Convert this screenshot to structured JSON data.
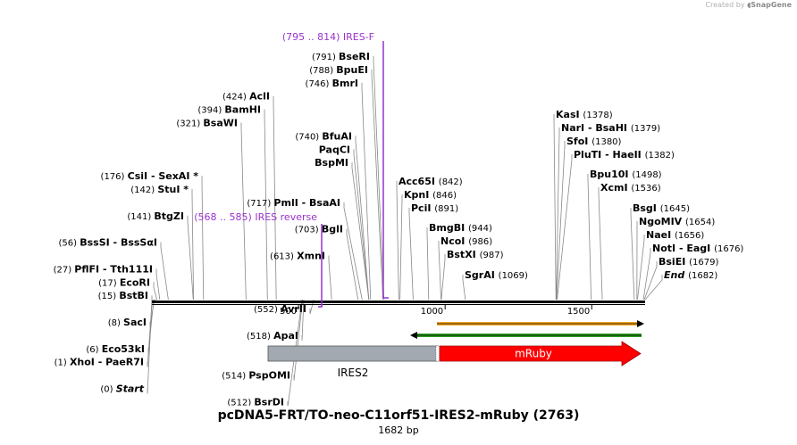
{
  "credit": {
    "prefix": "Created by",
    "brand": "SnapGene"
  },
  "title": "pcDNA5-FRT/TO-neo-C11orf51-IRES2-mRuby (2763)",
  "subtitle": "1682 bp",
  "colors": {
    "primer": "#9933cc",
    "ires": "#a2a9b1",
    "mruby": "#ff0000",
    "forward_arrow": "#f5a623",
    "reverse_arrow": "#2e9e1f"
  },
  "ruler": {
    "length": 1682,
    "ticks": [
      500,
      1000,
      1500
    ]
  },
  "primers": [
    {
      "label": "(795 .. 814)  IRES-F",
      "start": 795,
      "end": 814,
      "direction": "forward"
    },
    {
      "label": "(568 .. 585)  IRES reverse",
      "start": 568,
      "end": 585,
      "direction": "reverse"
    }
  ],
  "features": [
    {
      "name": "IRES2",
      "start": 400,
      "end": 985,
      "color": "#a2a9b1"
    },
    {
      "name": "mRuby",
      "start": 985,
      "end": 1680,
      "color": "#ff0000"
    }
  ],
  "orfs": [
    {
      "start": 985,
      "end": 1680,
      "direction": "forward",
      "color": "#f5a623"
    },
    {
      "start": 890,
      "end": 1680,
      "direction": "reverse",
      "color": "#2e9e1f"
    }
  ],
  "sites_left": [
    {
      "pos": "(791)",
      "name": "BseRI",
      "site": 791
    },
    {
      "pos": "(788)",
      "name": "BpuEI",
      "site": 788
    },
    {
      "pos": "(746)",
      "name": "BmrI",
      "site": 746
    },
    {
      "pos": "(424)",
      "name": "AclI",
      "site": 424
    },
    {
      "pos": "(394)",
      "name": "BamHI",
      "site": 394
    },
    {
      "pos": "(321)",
      "name": "BsaWI",
      "site": 321
    },
    {
      "pos": "(740)",
      "name": "BfuAI",
      "site": 740
    },
    {
      "pos": "",
      "name": "PaqCI",
      "site": 740
    },
    {
      "pos": "",
      "name": "BspMI",
      "site": 740
    },
    {
      "pos": "(176)",
      "name": "CsiI  -  SexAI *",
      "site": 176
    },
    {
      "pos": "(142)",
      "name": "StuI *",
      "site": 142
    },
    {
      "pos": "(717)",
      "name": "PmlI  -  BsaAI",
      "site": 717
    },
    {
      "pos": "(141)",
      "name": "BtgZI",
      "site": 141
    },
    {
      "pos": "(703)",
      "name": "BglI",
      "site": 703
    },
    {
      "pos": "(56)",
      "name": "BssSI  -  BssSαI",
      "site": 56
    },
    {
      "pos": "(613)",
      "name": "XmnI",
      "site": 613
    },
    {
      "pos": "(27)",
      "name": "PflFI  -  Tth111I",
      "site": 27
    },
    {
      "pos": "(17)",
      "name": "EcoRI",
      "site": 17
    },
    {
      "pos": "(15)",
      "name": "BstBI",
      "site": 15
    },
    {
      "pos": "(552)",
      "name": "AvrII",
      "site": 552
    },
    {
      "pos": "(8)",
      "name": "SacI",
      "site": 8
    },
    {
      "pos": "(518)",
      "name": "ApaI",
      "site": 518
    },
    {
      "pos": "(6)",
      "name": "Eco53kI",
      "site": 6
    },
    {
      "pos": "(1)",
      "name": "XhoI  -  PaeR7I",
      "site": 1
    },
    {
      "pos": "(514)",
      "name": "PspOMI",
      "site": 514
    },
    {
      "pos": "(0)",
      "name": "Start",
      "site": 0
    },
    {
      "pos": "(512)",
      "name": "BsrDI",
      "site": 512
    }
  ],
  "sites_right": [
    {
      "name": "KasI",
      "pos": "(1378)",
      "site": 1378
    },
    {
      "name": "NarI  -  BsaHI",
      "pos": "(1379)",
      "site": 1379
    },
    {
      "name": "SfoI",
      "pos": "(1380)",
      "site": 1380
    },
    {
      "name": "PluTI  -  HaeII",
      "pos": "(1382)",
      "site": 1382
    },
    {
      "name": "Bpu10I",
      "pos": "(1498)",
      "site": 1498
    },
    {
      "name": "Acc65I",
      "pos": "(842)",
      "site": 842
    },
    {
      "name": "XcmI",
      "pos": "(1536)",
      "site": 1536
    },
    {
      "name": "KpnI",
      "pos": "(846)",
      "site": 846
    },
    {
      "name": "PciI",
      "pos": "(891)",
      "site": 891
    },
    {
      "name": "BsgI",
      "pos": "(1645)",
      "site": 1645
    },
    {
      "name": "NgoMIV",
      "pos": "(1654)",
      "site": 1654
    },
    {
      "name": "BmgBI",
      "pos": "(944)",
      "site": 944
    },
    {
      "name": "NaeI",
      "pos": "(1656)",
      "site": 1656
    },
    {
      "name": "NcoI",
      "pos": "(986)",
      "site": 986
    },
    {
      "name": "NotI  -  EagI",
      "pos": "(1676)",
      "site": 1676
    },
    {
      "name": "BstXI",
      "pos": "(987)",
      "site": 987
    },
    {
      "name": "BsiEI",
      "pos": "(1679)",
      "site": 1679
    },
    {
      "name": "SgrAI",
      "pos": "(1069)",
      "site": 1069
    },
    {
      "name": "End",
      "pos": "(1682)",
      "site": 1682
    }
  ]
}
